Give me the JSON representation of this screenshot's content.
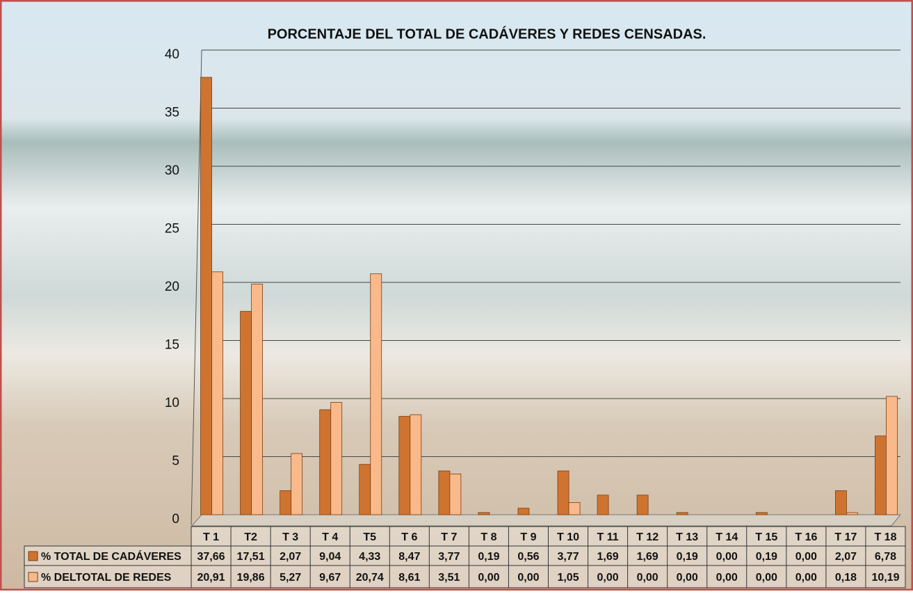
{
  "chart_data": {
    "type": "bar",
    "title": "PORCENTAJE DEL TOTAL DE CADÁVERES Y REDES CENSADAS.",
    "categories": [
      "T 1",
      "T2",
      "T 3",
      "T 4",
      "T5",
      "T 6",
      "T 7",
      "T 8",
      "T 9",
      "T 10",
      "T 11",
      "T 12",
      "T 13",
      "T 14",
      "T 15",
      "T 16",
      "T 17",
      "T 18"
    ],
    "series": [
      {
        "name": "% TOTAL DE CADÁVERES",
        "color": "#cf7430",
        "values": [
          37.66,
          17.51,
          2.07,
          9.04,
          4.33,
          8.47,
          3.77,
          0.19,
          0.56,
          3.77,
          1.69,
          1.69,
          0.19,
          0.0,
          0.19,
          0.0,
          2.07,
          6.78
        ],
        "value_labels": [
          "37,66",
          "17,51",
          "2,07",
          "9,04",
          "4,33",
          "8,47",
          "3,77",
          "0,19",
          "0,56",
          "3,77",
          "1,69",
          "1,69",
          "0,19",
          "0,00",
          "0,19",
          "0,00",
          "2,07",
          "6,78"
        ]
      },
      {
        "name": "% DELTOTAL DE REDES",
        "color": "#f9b98a",
        "values": [
          20.91,
          19.86,
          5.27,
          9.67,
          20.74,
          8.61,
          3.51,
          0.0,
          0.0,
          1.05,
          0.0,
          0.0,
          0.0,
          0.0,
          0.0,
          0.0,
          0.18,
          10.19
        ],
        "value_labels": [
          "20,91",
          "19,86",
          "5,27",
          "9,67",
          "20,74",
          "8,61",
          "3,51",
          "0,00",
          "0,00",
          "1,05",
          "0,00",
          "0,00",
          "0,00",
          "0,00",
          "0,00",
          "0,00",
          "0,18",
          "10,19"
        ]
      }
    ],
    "ylim": [
      0,
      40
    ],
    "yticks": [
      0,
      5,
      10,
      15,
      20,
      25,
      30,
      35,
      40
    ],
    "grid": true
  }
}
